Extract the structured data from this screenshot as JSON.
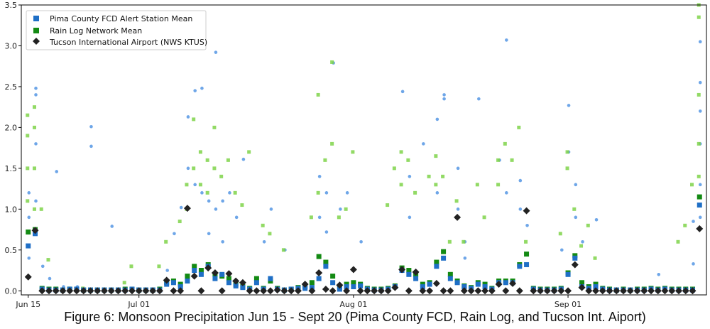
{
  "caption": "Figure 6: Monsoon Precipitation Jun 15 - Sept 20 (Pima County FCD, Rain Log, and Tucson Int. Aiport)",
  "chart_data": {
    "type": "scatter",
    "title": "",
    "xlabel": "",
    "ylabel": "",
    "x_axis": "date",
    "xlim": [
      "2019-06-14",
      "2019-09-21"
    ],
    "ylim": [
      -0.05,
      3.5
    ],
    "yticks": [
      0.0,
      0.5,
      1.0,
      1.5,
      2.0,
      2.5,
      3.0,
      3.5
    ],
    "ytick_labels": [
      "0.0",
      "0.5",
      "1.0",
      "1.5",
      "2.0",
      "2.5",
      "3.0",
      "3.5"
    ],
    "xticks": [
      "2019-06-15",
      "2019-07-01",
      "2019-08-01",
      "2019-09-01"
    ],
    "xtick_labels": [
      "Jun 15",
      "Jul 01",
      "Aug 01",
      "Sep 01"
    ],
    "grid": false,
    "legend": {
      "position": "top-left",
      "entries": [
        {
          "label": "Pima County FCD Alert Station Mean",
          "marker": "square",
          "color": "#1f6fc6"
        },
        {
          "label": "Rain Log Network Mean",
          "marker": "square",
          "color": "#138a13"
        },
        {
          "label": "Tucson International Airport (NWS KTUS)",
          "marker": "diamond",
          "color": "#222222"
        }
      ]
    },
    "colors": {
      "pima_station_points": "#4a90e2",
      "rain_log_station_points": "#7fd34a",
      "pima_mean": "#1f6fc6",
      "rain_log_mean": "#138a13",
      "airport": "#222222"
    },
    "series": [
      {
        "name": "Pima County FCD Alert Station Mean",
        "x": [
          "2019-06-15",
          "2019-06-16",
          "2019-06-17",
          "2019-06-18",
          "2019-06-19",
          "2019-06-20",
          "2019-06-21",
          "2019-06-22",
          "2019-06-23",
          "2019-06-24",
          "2019-06-25",
          "2019-06-26",
          "2019-06-27",
          "2019-06-28",
          "2019-06-29",
          "2019-06-30",
          "2019-07-01",
          "2019-07-02",
          "2019-07-03",
          "2019-07-04",
          "2019-07-05",
          "2019-07-06",
          "2019-07-07",
          "2019-07-08",
          "2019-07-09",
          "2019-07-10",
          "2019-07-11",
          "2019-07-12",
          "2019-07-13",
          "2019-07-14",
          "2019-07-15",
          "2019-07-16",
          "2019-07-17",
          "2019-07-18",
          "2019-07-19",
          "2019-07-20",
          "2019-07-21",
          "2019-07-22",
          "2019-07-23",
          "2019-07-24",
          "2019-07-25",
          "2019-07-26",
          "2019-07-27",
          "2019-07-28",
          "2019-07-29",
          "2019-07-30",
          "2019-07-31",
          "2019-08-01",
          "2019-08-02",
          "2019-08-03",
          "2019-08-04",
          "2019-08-05",
          "2019-08-06",
          "2019-08-07",
          "2019-08-08",
          "2019-08-09",
          "2019-08-10",
          "2019-08-11",
          "2019-08-12",
          "2019-08-13",
          "2019-08-14",
          "2019-08-15",
          "2019-08-16",
          "2019-08-17",
          "2019-08-18",
          "2019-08-19",
          "2019-08-20",
          "2019-08-21",
          "2019-08-22",
          "2019-08-23",
          "2019-08-24",
          "2019-08-25",
          "2019-08-26",
          "2019-08-27",
          "2019-08-28",
          "2019-08-29",
          "2019-08-30",
          "2019-08-31",
          "2019-09-01",
          "2019-09-02",
          "2019-09-03",
          "2019-09-04",
          "2019-09-05",
          "2019-09-06",
          "2019-09-07",
          "2019-09-08",
          "2019-09-09",
          "2019-09-10",
          "2019-09-11",
          "2019-09-12",
          "2019-09-13",
          "2019-09-14",
          "2019-09-15",
          "2019-09-16",
          "2019-09-17",
          "2019-09-18",
          "2019-09-19",
          "2019-09-20"
        ],
        "values": [
          0.55,
          0.7,
          0.02,
          0.01,
          0.01,
          0.01,
          0.02,
          0.02,
          0.01,
          0.01,
          0.01,
          0.01,
          0.01,
          0.01,
          0.01,
          0.02,
          0.01,
          0.01,
          0.01,
          0.01,
          0.08,
          0.1,
          0.05,
          0.12,
          0.25,
          0.2,
          0.3,
          0.15,
          0.2,
          0.1,
          0.06,
          0.04,
          0.02,
          0.1,
          0.02,
          0.15,
          0.02,
          0.01,
          0.02,
          0.03,
          0.03,
          0.04,
          0.15,
          0.3,
          0.1,
          0.02,
          0.05,
          0.05,
          0.06,
          0.02,
          0.01,
          0.01,
          0.02,
          0.05,
          0.25,
          0.2,
          0.15,
          0.05,
          0.08,
          0.3,
          0.4,
          0.15,
          0.1,
          0.05,
          0.03,
          0.08,
          0.05,
          0.02,
          0.1,
          0.1,
          0.1,
          0.3,
          0.32,
          0.02,
          0.01,
          0.01,
          0.01,
          0.02,
          0.2,
          0.4,
          0.05,
          0.03,
          0.05,
          0.02,
          0.01,
          0.01,
          0.01,
          0.01,
          0.01,
          0.01,
          0.02,
          0.01,
          0.02,
          0.01,
          0.01,
          0.01,
          0.01,
          1.05
        ]
      },
      {
        "name": "Rain Log Network Mean",
        "x": [
          "2019-06-15",
          "2019-06-16",
          "2019-06-17",
          "2019-06-18",
          "2019-06-19",
          "2019-06-20",
          "2019-06-21",
          "2019-06-22",
          "2019-06-23",
          "2019-06-24",
          "2019-06-25",
          "2019-06-26",
          "2019-06-27",
          "2019-06-28",
          "2019-06-29",
          "2019-06-30",
          "2019-07-01",
          "2019-07-02",
          "2019-07-03",
          "2019-07-04",
          "2019-07-05",
          "2019-07-06",
          "2019-07-07",
          "2019-07-08",
          "2019-07-09",
          "2019-07-10",
          "2019-07-11",
          "2019-07-12",
          "2019-07-13",
          "2019-07-14",
          "2019-07-15",
          "2019-07-16",
          "2019-07-17",
          "2019-07-18",
          "2019-07-19",
          "2019-07-20",
          "2019-07-21",
          "2019-07-22",
          "2019-07-23",
          "2019-07-24",
          "2019-07-25",
          "2019-07-26",
          "2019-07-27",
          "2019-07-28",
          "2019-07-29",
          "2019-07-30",
          "2019-07-31",
          "2019-08-01",
          "2019-08-02",
          "2019-08-03",
          "2019-08-04",
          "2019-08-05",
          "2019-08-06",
          "2019-08-07",
          "2019-08-08",
          "2019-08-09",
          "2019-08-10",
          "2019-08-11",
          "2019-08-12",
          "2019-08-13",
          "2019-08-14",
          "2019-08-15",
          "2019-08-16",
          "2019-08-17",
          "2019-08-18",
          "2019-08-19",
          "2019-08-20",
          "2019-08-21",
          "2019-08-22",
          "2019-08-23",
          "2019-08-24",
          "2019-08-25",
          "2019-08-26",
          "2019-08-27",
          "2019-08-28",
          "2019-08-29",
          "2019-08-30",
          "2019-08-31",
          "2019-09-01",
          "2019-09-02",
          "2019-09-03",
          "2019-09-04",
          "2019-09-05",
          "2019-09-06",
          "2019-09-07",
          "2019-09-08",
          "2019-09-09",
          "2019-09-10",
          "2019-09-11",
          "2019-09-12",
          "2019-09-13",
          "2019-09-14",
          "2019-09-15",
          "2019-09-16",
          "2019-09-17",
          "2019-09-18",
          "2019-09-19",
          "2019-09-20"
        ],
        "values": [
          0.72,
          0.75,
          0.03,
          0.02,
          0.02,
          0.01,
          0.02,
          0.02,
          0.01,
          0.01,
          0.01,
          0.01,
          0.01,
          0.01,
          0.02,
          0.02,
          0.01,
          0.01,
          0.01,
          0.02,
          0.1,
          0.12,
          0.08,
          0.18,
          0.3,
          0.25,
          0.32,
          0.2,
          0.18,
          0.15,
          0.08,
          0.05,
          0.03,
          0.15,
          0.03,
          0.12,
          0.03,
          0.01,
          0.02,
          0.04,
          0.05,
          0.1,
          0.42,
          0.35,
          0.18,
          0.05,
          0.08,
          0.1,
          0.08,
          0.03,
          0.02,
          0.02,
          0.03,
          0.06,
          0.28,
          0.25,
          0.2,
          0.08,
          0.1,
          0.35,
          0.48,
          0.2,
          0.12,
          0.06,
          0.04,
          0.1,
          0.08,
          0.03,
          0.12,
          0.12,
          0.12,
          0.32,
          0.45,
          0.03,
          0.02,
          0.02,
          0.02,
          0.03,
          0.22,
          0.43,
          0.1,
          0.05,
          0.08,
          0.03,
          0.02,
          0.01,
          0.02,
          0.01,
          0.02,
          0.02,
          0.03,
          0.02,
          0.03,
          0.02,
          0.02,
          0.02,
          0.02,
          1.15
        ]
      },
      {
        "name": "Tucson International Airport (NWS KTUS)",
        "x": [
          "2019-06-15",
          "2019-06-16",
          "2019-06-17",
          "2019-06-18",
          "2019-06-19",
          "2019-06-20",
          "2019-06-21",
          "2019-06-22",
          "2019-06-23",
          "2019-06-24",
          "2019-06-25",
          "2019-06-26",
          "2019-06-27",
          "2019-06-28",
          "2019-06-29",
          "2019-06-30",
          "2019-07-01",
          "2019-07-02",
          "2019-07-03",
          "2019-07-04",
          "2019-07-05",
          "2019-07-06",
          "2019-07-07",
          "2019-07-08",
          "2019-07-09",
          "2019-07-10",
          "2019-07-11",
          "2019-07-12",
          "2019-07-13",
          "2019-07-14",
          "2019-07-15",
          "2019-07-16",
          "2019-07-17",
          "2019-07-18",
          "2019-07-19",
          "2019-07-20",
          "2019-07-21",
          "2019-07-22",
          "2019-07-23",
          "2019-07-24",
          "2019-07-25",
          "2019-07-26",
          "2019-07-27",
          "2019-07-28",
          "2019-07-29",
          "2019-07-30",
          "2019-07-31",
          "2019-08-01",
          "2019-08-02",
          "2019-08-03",
          "2019-08-04",
          "2019-08-05",
          "2019-08-06",
          "2019-08-07",
          "2019-08-08",
          "2019-08-09",
          "2019-08-10",
          "2019-08-11",
          "2019-08-12",
          "2019-08-13",
          "2019-08-14",
          "2019-08-15",
          "2019-08-16",
          "2019-08-17",
          "2019-08-18",
          "2019-08-19",
          "2019-08-20",
          "2019-08-21",
          "2019-08-22",
          "2019-08-23",
          "2019-08-24",
          "2019-08-25",
          "2019-08-26",
          "2019-08-27",
          "2019-08-28",
          "2019-08-29",
          "2019-08-30",
          "2019-08-31",
          "2019-09-01",
          "2019-09-02",
          "2019-09-03",
          "2019-09-04",
          "2019-09-05",
          "2019-09-06",
          "2019-09-07",
          "2019-09-08",
          "2019-09-09",
          "2019-09-10",
          "2019-09-11",
          "2019-09-12",
          "2019-09-13",
          "2019-09-14",
          "2019-09-15",
          "2019-09-16",
          "2019-09-17",
          "2019-09-18",
          "2019-09-19",
          "2019-09-20"
        ],
        "values": [
          0.17,
          0.74,
          0.0,
          0.0,
          0.0,
          0.0,
          0.0,
          0.0,
          0.0,
          0.0,
          0.0,
          0.0,
          0.0,
          0.0,
          0.0,
          0.0,
          0.0,
          0.0,
          0.0,
          0.0,
          0.13,
          0.0,
          0.0,
          1.01,
          0.18,
          0.0,
          0.28,
          0.22,
          0.0,
          0.21,
          0.12,
          0.1,
          0.0,
          0.0,
          0.0,
          0.0,
          0.01,
          0.0,
          0.0,
          0.0,
          0.08,
          0.0,
          0.22,
          0.02,
          0.0,
          0.07,
          0.0,
          0.26,
          0.0,
          0.0,
          0.0,
          0.0,
          0.0,
          0.04,
          0.26,
          0.0,
          0.23,
          0.0,
          0.0,
          0.09,
          0.0,
          0.0,
          0.9,
          0.0,
          0.0,
          0.0,
          0.0,
          0.0,
          0.08,
          0.0,
          0.09,
          0.0,
          0.98,
          0.0,
          0.0,
          0.0,
          0.0,
          0.0,
          0.0,
          0.32,
          0.04,
          0.0,
          0.0,
          0.0,
          0.0,
          0.0,
          0.0,
          0.0,
          0.0,
          0.0,
          0.0,
          0.0,
          0.0,
          0.0,
          0.0,
          0.0,
          0.0,
          0.76
        ]
      }
    ],
    "station_points": {
      "pima_county_fcd": {
        "x": [
          "2019-06-15",
          "2019-06-15",
          "2019-06-15",
          "2019-06-16",
          "2019-06-16",
          "2019-06-16",
          "2019-06-16",
          "2019-06-17",
          "2019-06-18",
          "2019-06-19",
          "2019-06-20",
          "2019-06-22",
          "2019-06-24",
          "2019-06-24",
          "2019-06-27",
          "2019-07-05",
          "2019-07-06",
          "2019-07-07",
          "2019-07-08",
          "2019-07-08",
          "2019-07-09",
          "2019-07-09",
          "2019-07-10",
          "2019-07-10",
          "2019-07-11",
          "2019-07-11",
          "2019-07-12",
          "2019-07-12",
          "2019-07-13",
          "2019-07-13",
          "2019-07-14",
          "2019-07-15",
          "2019-07-16",
          "2019-07-19",
          "2019-07-20",
          "2019-07-22",
          "2019-07-27",
          "2019-07-27",
          "2019-07-28",
          "2019-07-28",
          "2019-07-29",
          "2019-07-30",
          "2019-07-31",
          "2019-08-02",
          "2019-08-08",
          "2019-08-09",
          "2019-08-09",
          "2019-08-11",
          "2019-08-13",
          "2019-08-13",
          "2019-08-14",
          "2019-08-14",
          "2019-08-16",
          "2019-08-16",
          "2019-08-17",
          "2019-08-17",
          "2019-08-19",
          "2019-08-22",
          "2019-08-23",
          "2019-08-23",
          "2019-08-25",
          "2019-08-25",
          "2019-08-26",
          "2019-08-31",
          "2019-09-01",
          "2019-09-01",
          "2019-09-02",
          "2019-09-02",
          "2019-09-03",
          "2019-09-05",
          "2019-09-14",
          "2019-09-19",
          "2019-09-19",
          "2019-09-20",
          "2019-09-20",
          "2019-09-20",
          "2019-09-20",
          "2019-09-20",
          "2019-09-20"
        ],
        "values": [
          1.2,
          0.9,
          0.4,
          2.48,
          2.4,
          1.8,
          1.1,
          0.3,
          0.15,
          1.46,
          0.05,
          0.05,
          2.01,
          1.77,
          0.79,
          0.25,
          0.7,
          1.02,
          2.13,
          1.5,
          2.45,
          1.3,
          2.48,
          1.2,
          1.1,
          0.7,
          2.92,
          1.0,
          1.1,
          0.6,
          1.2,
          0.9,
          1.61,
          0.6,
          1.0,
          0.5,
          1.4,
          0.9,
          0.72,
          1.2,
          2.79,
          1.0,
          1.2,
          0.6,
          2.44,
          1.4,
          0.9,
          1.8,
          2.1,
          1.2,
          2.4,
          2.35,
          1.5,
          1.0,
          0.6,
          0.4,
          2.35,
          1.6,
          3.07,
          1.2,
          1.35,
          1.0,
          0.8,
          0.5,
          2.27,
          1.7,
          1.3,
          0.9,
          0.6,
          0.87,
          0.2,
          0.33,
          0.85,
          3.05,
          2.55,
          2.2,
          1.8,
          1.3,
          0.9
        ]
      },
      "rain_log_network": {
        "x": [
          "2019-06-15",
          "2019-06-15",
          "2019-06-15",
          "2019-06-15",
          "2019-06-16",
          "2019-06-16",
          "2019-06-16",
          "2019-06-16",
          "2019-06-17",
          "2019-06-18",
          "2019-06-21",
          "2019-06-23",
          "2019-06-29",
          "2019-06-30",
          "2019-07-04",
          "2019-07-05",
          "2019-07-07",
          "2019-07-08",
          "2019-07-08",
          "2019-07-09",
          "2019-07-09",
          "2019-07-10",
          "2019-07-10",
          "2019-07-11",
          "2019-07-11",
          "2019-07-12",
          "2019-07-12",
          "2019-07-13",
          "2019-07-14",
          "2019-07-15",
          "2019-07-16",
          "2019-07-17",
          "2019-07-19",
          "2019-07-20",
          "2019-07-22",
          "2019-07-26",
          "2019-07-27",
          "2019-07-27",
          "2019-07-28",
          "2019-07-29",
          "2019-07-29",
          "2019-07-30",
          "2019-07-31",
          "2019-08-01",
          "2019-08-06",
          "2019-08-07",
          "2019-08-08",
          "2019-08-08",
          "2019-08-09",
          "2019-08-10",
          "2019-08-12",
          "2019-08-13",
          "2019-08-13",
          "2019-08-14",
          "2019-08-15",
          "2019-08-16",
          "2019-08-17",
          "2019-08-19",
          "2019-08-20",
          "2019-08-22",
          "2019-08-22",
          "2019-08-23",
          "2019-08-24",
          "2019-08-25",
          "2019-08-26",
          "2019-08-31",
          "2019-09-01",
          "2019-09-01",
          "2019-09-02",
          "2019-09-03",
          "2019-09-04",
          "2019-09-05",
          "2019-09-17",
          "2019-09-18",
          "2019-09-19",
          "2019-09-20",
          "2019-09-20",
          "2019-09-20",
          "2019-09-20",
          "2019-09-20"
        ],
        "values": [
          2.15,
          1.9,
          1.5,
          1.1,
          2.25,
          2.0,
          1.5,
          1.0,
          1.0,
          0.38,
          0.03,
          0.03,
          0.1,
          0.3,
          0.3,
          0.6,
          0.85,
          1.3,
          1.0,
          2.1,
          1.5,
          1.7,
          1.3,
          1.6,
          1.2,
          2.0,
          1.5,
          1.4,
          1.6,
          1.2,
          1.05,
          1.7,
          0.8,
          0.7,
          0.5,
          0.9,
          2.4,
          1.2,
          1.6,
          2.8,
          1.8,
          0.9,
          1.0,
          1.7,
          1.05,
          1.5,
          1.7,
          1.3,
          1.6,
          1.2,
          1.4,
          1.65,
          1.3,
          1.4,
          0.6,
          1.1,
          0.6,
          1.3,
          0.9,
          1.6,
          1.3,
          1.8,
          1.6,
          2.0,
          0.6,
          0.7,
          1.7,
          1.5,
          1.0,
          0.55,
          0.8,
          0.4,
          0.6,
          0.8,
          1.3,
          3.5,
          3.35,
          2.4,
          1.8,
          1.4
        ]
      }
    }
  }
}
